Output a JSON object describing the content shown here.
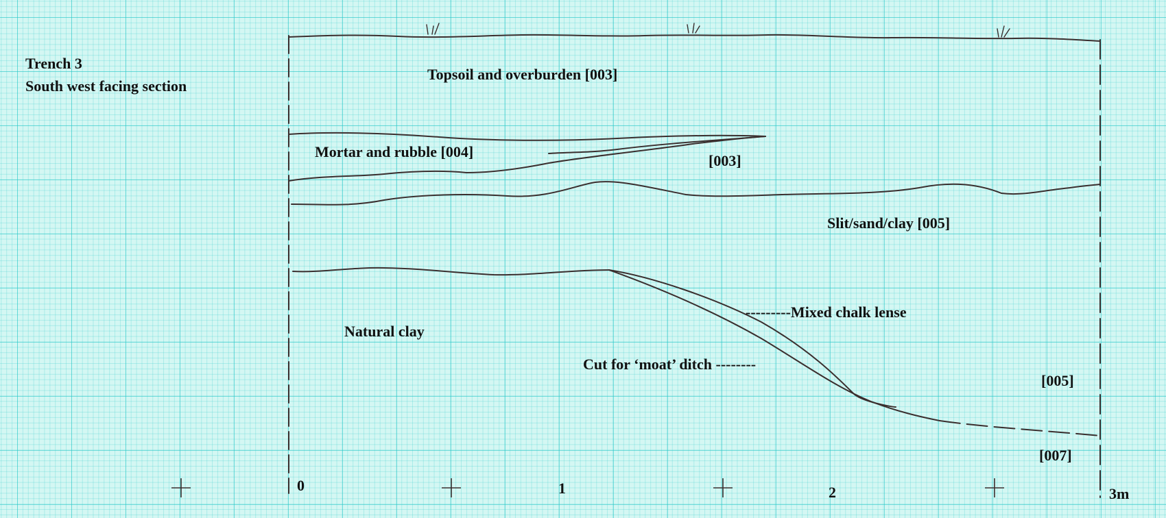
{
  "title": {
    "line1": "Trench 3",
    "line2": "South west facing section"
  },
  "labels": {
    "topsoil": "Topsoil and overburden [003]",
    "mortar": "Mortar and rubble [004]",
    "layer003": "[003]",
    "silt": "Slit/sand/clay [005]",
    "chalk": "---------Mixed chalk lense",
    "natural": "Natural clay",
    "cut": "Cut for ‘moat’ ditch --------",
    "layer005": "[005]",
    "layer007": "[007]"
  },
  "scale": {
    "ticks": [
      "0",
      "1",
      "2",
      "3m"
    ]
  },
  "colors": {
    "ink": "#3a2e2e",
    "grid_paper": "#d4f7f3"
  }
}
